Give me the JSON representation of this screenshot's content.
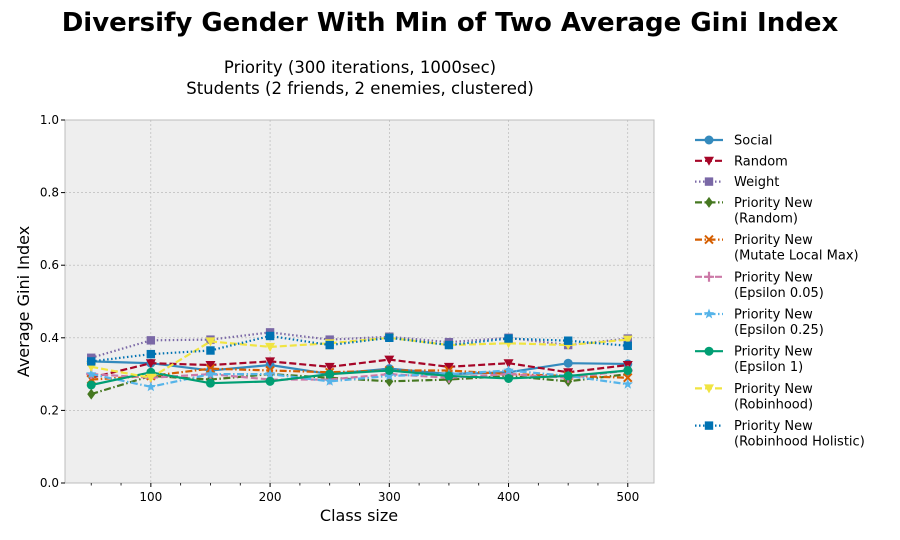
{
  "chart_data": {
    "type": "line",
    "title": "Diversify Gender With Min of Two Average Gini Index",
    "subtitle": [
      "Priority (300 iterations, 1000sec)",
      "Students (2 friends, 2 enemies, clustered)"
    ],
    "xlabel": "Class size",
    "ylabel": "Average Gini Index",
    "xlim": [
      28,
      522
    ],
    "ylim": [
      0.0,
      1.0
    ],
    "x_ticks": [
      100,
      200,
      300,
      400,
      500
    ],
    "y_ticks": [
      0.0,
      0.2,
      0.4,
      0.6,
      0.8,
      1.0
    ],
    "x_tick_labels": [
      "100",
      "200",
      "300",
      "400",
      "500"
    ],
    "y_tick_labels": [
      "0.0",
      "0.2",
      "0.4",
      "0.6",
      "0.8",
      "1.0"
    ],
    "grid": true,
    "legend_position": "right outside",
    "x": [
      50,
      100,
      150,
      200,
      250,
      300,
      350,
      400,
      450,
      500
    ],
    "series": [
      {
        "name": "Social",
        "color": "#348ABD",
        "dash": "solid",
        "marker": "circle",
        "values": [
          0.335,
          0.33,
          0.31,
          0.325,
          0.3,
          0.315,
          0.3,
          0.305,
          0.33,
          0.328
        ]
      },
      {
        "name": "Random",
        "color": "#A60628",
        "dash": "dashed",
        "marker": "triangle-down",
        "values": [
          0.29,
          0.33,
          0.325,
          0.335,
          0.32,
          0.34,
          0.32,
          0.33,
          0.305,
          0.325
        ]
      },
      {
        "name": "Weight",
        "color": "#7A68A6",
        "dash": "dotted",
        "marker": "square",
        "values": [
          0.345,
          0.393,
          0.395,
          0.415,
          0.395,
          0.403,
          0.388,
          0.4,
          0.38,
          0.398
        ]
      },
      {
        "name": "Priority New\n(Random)",
        "color": "#467821",
        "dash": "dashdot",
        "marker": "diamond",
        "values": [
          0.245,
          0.295,
          0.285,
          0.3,
          0.29,
          0.28,
          0.285,
          0.295,
          0.28,
          0.3
        ]
      },
      {
        "name": "Priority New\n(Mutate Local Max)",
        "color": "#D55E00",
        "dash": "dashdot",
        "marker": "x",
        "values": [
          0.285,
          0.295,
          0.315,
          0.31,
          0.305,
          0.31,
          0.31,
          0.3,
          0.295,
          0.29
        ]
      },
      {
        "name": "Priority New\n(Epsilon 0.05)",
        "color": "#CC79A7",
        "dash": "dashed",
        "marker": "plus",
        "values": [
          0.3,
          0.29,
          0.3,
          0.285,
          0.285,
          0.3,
          0.29,
          0.3,
          0.29,
          0.31
        ]
      },
      {
        "name": "Priority New\n(Epsilon 0.25)",
        "color": "#56B4E9",
        "dash": "dashdot",
        "marker": "star",
        "values": [
          0.3,
          0.265,
          0.3,
          0.3,
          0.28,
          0.295,
          0.3,
          0.31,
          0.295,
          0.272
        ]
      },
      {
        "name": "Priority New\n(Epsilon 1)",
        "color": "#009E73",
        "dash": "solid",
        "marker": "circle",
        "values": [
          0.27,
          0.305,
          0.275,
          0.28,
          0.3,
          0.31,
          0.295,
          0.288,
          0.295,
          0.31
        ]
      },
      {
        "name": "Priority New\n(Robinhood)",
        "color": "#F0E442",
        "dash": "dashed",
        "marker": "triangle-down",
        "values": [
          0.32,
          0.29,
          0.39,
          0.375,
          0.385,
          0.4,
          0.38,
          0.385,
          0.38,
          0.395
        ]
      },
      {
        "name": "Priority New\n(Robinhood Holistic)",
        "color": "#0072B2",
        "dash": "dotted",
        "marker": "square",
        "values": [
          0.335,
          0.355,
          0.365,
          0.405,
          0.38,
          0.4,
          0.38,
          0.398,
          0.392,
          0.378
        ]
      }
    ]
  }
}
